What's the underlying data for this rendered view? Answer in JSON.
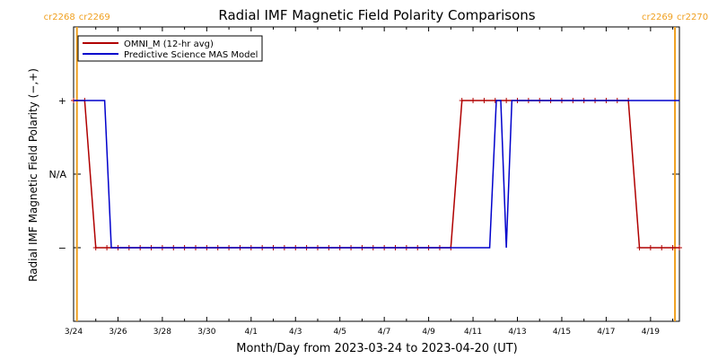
{
  "chart_data": {
    "type": "line",
    "title": "Radial IMF Magnetic Field Polarity Comparisons",
    "xlabel": "Month/Day from 2023-03-24 to 2023-04-20 (UT)",
    "ylabel": "Radial IMF Magnetic Field Polarity (−,+)",
    "x_start": "2023-03-24",
    "x_range_days": [
      0,
      27.3
    ],
    "y_categories": [
      "−",
      "N/A",
      "+"
    ],
    "y_values_meaning": {
      "−": -1,
      "N/A": 0,
      "+": 1
    },
    "ylim": [
      -2,
      2
    ],
    "x_ticks": [
      {
        "day": 0,
        "label": "3/24"
      },
      {
        "day": 2,
        "label": "3/26"
      },
      {
        "day": 4,
        "label": "3/28"
      },
      {
        "day": 6,
        "label": "3/30"
      },
      {
        "day": 8,
        "label": "4/1"
      },
      {
        "day": 10,
        "label": "4/3"
      },
      {
        "day": 12,
        "label": "4/5"
      },
      {
        "day": 14,
        "label": "4/7"
      },
      {
        "day": 16,
        "label": "4/9"
      },
      {
        "day": 18,
        "label": "4/11"
      },
      {
        "day": 20,
        "label": "4/13"
      },
      {
        "day": 22,
        "label": "4/15"
      },
      {
        "day": 24,
        "label": "4/17"
      },
      {
        "day": 26,
        "label": "4/19"
      }
    ],
    "legend": {
      "placement": "top-left"
    },
    "series": [
      {
        "name": "OMNI_M (12-hr avg)",
        "color": "#b00000",
        "markers": true,
        "points": [
          [
            0.0,
            1
          ],
          [
            0.5,
            1
          ],
          [
            1.0,
            -1
          ],
          [
            1.5,
            -1
          ],
          [
            2.0,
            -1
          ],
          [
            2.5,
            -1
          ],
          [
            3.0,
            -1
          ],
          [
            3.5,
            -1
          ],
          [
            4.0,
            -1
          ],
          [
            4.5,
            -1
          ],
          [
            5.0,
            -1
          ],
          [
            5.5,
            -1
          ],
          [
            6.0,
            -1
          ],
          [
            6.5,
            -1
          ],
          [
            7.0,
            -1
          ],
          [
            7.5,
            -1
          ],
          [
            8.0,
            -1
          ],
          [
            8.5,
            -1
          ],
          [
            9.0,
            -1
          ],
          [
            9.5,
            -1
          ],
          [
            10.0,
            -1
          ],
          [
            10.5,
            -1
          ],
          [
            11.0,
            -1
          ],
          [
            11.5,
            -1
          ],
          [
            12.0,
            -1
          ],
          [
            12.5,
            -1
          ],
          [
            13.0,
            -1
          ],
          [
            13.5,
            -1
          ],
          [
            14.0,
            -1
          ],
          [
            14.5,
            -1
          ],
          [
            15.0,
            -1
          ],
          [
            15.5,
            -1
          ],
          [
            16.0,
            -1
          ],
          [
            16.5,
            -1
          ],
          [
            17.0,
            -1
          ],
          [
            17.5,
            1
          ],
          [
            18.0,
            1
          ],
          [
            18.5,
            1
          ],
          [
            19.0,
            1
          ],
          [
            19.5,
            1
          ],
          [
            20.0,
            1
          ],
          [
            20.5,
            1
          ],
          [
            21.0,
            1
          ],
          [
            21.5,
            1
          ],
          [
            22.0,
            1
          ],
          [
            22.5,
            1
          ],
          [
            23.0,
            1
          ],
          [
            23.5,
            1
          ],
          [
            24.0,
            1
          ],
          [
            24.5,
            1
          ],
          [
            25.0,
            1
          ],
          [
            25.5,
            -1
          ],
          [
            26.0,
            -1
          ],
          [
            26.5,
            -1
          ],
          [
            27.0,
            -1
          ],
          [
            27.3,
            -1
          ]
        ]
      },
      {
        "name": "Predictive Science MAS Model",
        "color": "#0000cc",
        "markers": false,
        "points": [
          [
            0.0,
            1
          ],
          [
            1.4,
            1
          ],
          [
            1.7,
            -1
          ],
          [
            18.75,
            -1
          ],
          [
            19.05,
            1
          ],
          [
            19.25,
            1
          ],
          [
            19.5,
            -1
          ],
          [
            19.75,
            1
          ],
          [
            27.3,
            1
          ]
        ]
      }
    ],
    "carrington_rotations": [
      {
        "day": 0.15,
        "label_left": "cr2268",
        "label_right": "cr2269"
      },
      {
        "day": 27.1,
        "label_left": "cr2269",
        "label_right": "cr2270"
      }
    ],
    "colors": {
      "axes": "#000000",
      "cr_lines": "#f0a020"
    }
  }
}
